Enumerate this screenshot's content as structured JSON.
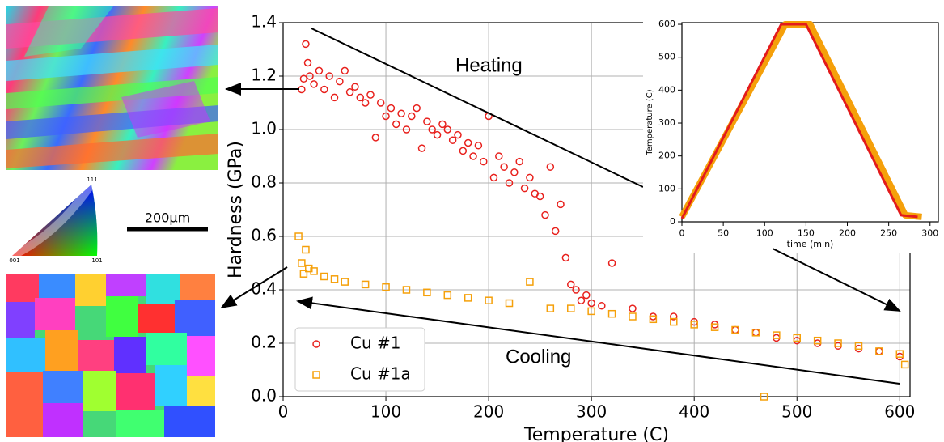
{
  "chart_data": [
    {
      "type": "scatter",
      "xlabel": "Temperature (C)",
      "ylabel": "Hardness (GPa)",
      "xlim": [
        0,
        610
      ],
      "ylim": [
        0,
        1.4
      ],
      "xticks": [
        0,
        100,
        200,
        300,
        400,
        500,
        600
      ],
      "yticks": [
        {
          "value": 0,
          "label": "0.0"
        },
        0.2,
        0.4,
        0.6,
        0.8,
        {
          "value": 1,
          "label": "1.0"
        },
        1.2,
        1.4
      ],
      "grid": true,
      "legend": "lower left",
      "annotations": [
        "Heating",
        "Cooling"
      ],
      "series": [
        {
          "name": "Cu #1",
          "color": "#e8201c",
          "marker": "circle",
          "x": [
            18,
            20,
            22,
            24,
            26,
            30,
            35,
            40,
            45,
            50,
            55,
            60,
            65,
            70,
            75,
            80,
            85,
            90,
            95,
            100,
            105,
            110,
            115,
            120,
            125,
            130,
            135,
            140,
            145,
            150,
            155,
            160,
            165,
            170,
            175,
            180,
            185,
            190,
            195,
            200,
            205,
            210,
            215,
            220,
            225,
            230,
            235,
            240,
            245,
            250,
            255,
            260,
            265,
            270,
            275,
            280,
            285,
            290,
            295,
            300,
            310,
            320,
            340,
            360,
            380,
            400,
            420,
            440,
            460,
            480,
            500,
            520,
            540,
            560,
            580,
            600
          ],
          "values": [
            1.15,
            1.19,
            1.32,
            1.25,
            1.2,
            1.17,
            1.22,
            1.15,
            1.2,
            1.12,
            1.18,
            1.22,
            1.14,
            1.16,
            1.12,
            1.1,
            1.13,
            0.97,
            1.1,
            1.05,
            1.08,
            1.02,
            1.06,
            1.0,
            1.05,
            1.08,
            0.93,
            1.03,
            1.0,
            0.98,
            1.02,
            1.0,
            0.96,
            0.98,
            0.92,
            0.95,
            0.9,
            0.94,
            0.88,
            1.05,
            0.82,
            0.9,
            0.86,
            0.8,
            0.84,
            0.88,
            0.78,
            0.82,
            0.76,
            0.75,
            0.68,
            0.86,
            0.62,
            0.72,
            0.52,
            0.42,
            0.4,
            0.36,
            0.38,
            0.35,
            0.34,
            0.5,
            0.33,
            0.3,
            0.3,
            0.28,
            0.27,
            0.25,
            0.24,
            0.22,
            0.21,
            0.2,
            0.19,
            0.18,
            0.17,
            0.15
          ]
        },
        {
          "name": "Cu #1a",
          "color": "#f5a00a",
          "marker": "square",
          "x": [
            15,
            18,
            20,
            22,
            25,
            30,
            40,
            50,
            60,
            80,
            100,
            120,
            140,
            160,
            180,
            200,
            220,
            240,
            260,
            280,
            300,
            320,
            340,
            360,
            380,
            400,
            420,
            440,
            460,
            468,
            480,
            500,
            520,
            540,
            560,
            580,
            600,
            605
          ],
          "values": [
            0.6,
            0.5,
            0.46,
            0.55,
            0.48,
            0.47,
            0.45,
            0.44,
            0.43,
            0.42,
            0.41,
            0.4,
            0.39,
            0.38,
            0.37,
            0.36,
            0.35,
            0.43,
            0.33,
            0.33,
            0.32,
            0.31,
            0.3,
            0.29,
            0.28,
            0.27,
            0.26,
            0.25,
            0.24,
            0.0,
            0.23,
            0.22,
            0.21,
            0.2,
            0.19,
            0.17,
            0.16,
            0.12
          ]
        }
      ]
    },
    {
      "type": "line",
      "xlabel": "time (min)",
      "ylabel": "Temperature (C)",
      "xlim": [
        0,
        310
      ],
      "ylim": [
        0,
        605
      ],
      "xticks": [
        0,
        50,
        100,
        150,
        200,
        250,
        300
      ],
      "yticks": [
        0,
        100,
        200,
        300,
        400,
        500,
        600
      ],
      "series": [
        {
          "name": null,
          "color": "#f5a00a",
          "width": 8,
          "x": [
            0,
            125,
            155,
            270,
            290
          ],
          "values": [
            15,
            600,
            600,
            20,
            15
          ]
        },
        {
          "name": null,
          "color": "#e31a1c",
          "width": 3,
          "x": [
            0,
            120,
            150,
            265,
            285
          ],
          "values": [
            10,
            600,
            600,
            20,
            15
          ]
        }
      ]
    }
  ],
  "figure": {
    "scale_bar": "200µm",
    "triangle_labels": [
      "111",
      "001",
      "101"
    ]
  }
}
